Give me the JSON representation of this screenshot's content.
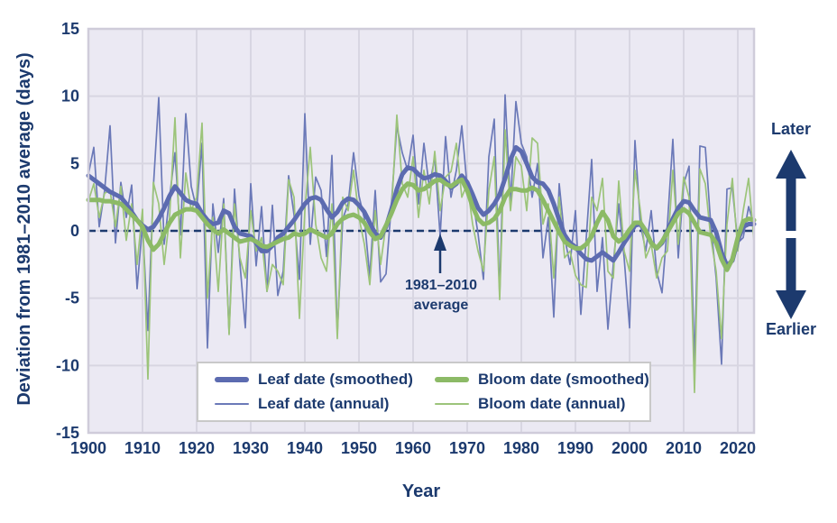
{
  "colors": {
    "navy": "#1c3a6e",
    "leaf_smoothed": "#5c6bb0",
    "leaf_annual": "#6b79b8",
    "bloom_smoothed": "#8cba66",
    "bloom_annual": "#9cc47a",
    "plot_background": "#ebe9f3",
    "gridline": "#d8d6e2",
    "plot_border": "#cfccda",
    "legend_border": "#c9c9c9"
  },
  "annotation": {
    "line1": "1981–2010",
    "line2": "average",
    "points_to_year": 1965
  },
  "direction_labels": {
    "up": "Later",
    "down": "Earlier"
  },
  "legend": {
    "items": [
      {
        "label": "Leaf date (smoothed)",
        "color": "#5c6bb0",
        "weight": "thick"
      },
      {
        "label": "Bloom date (smoothed)",
        "color": "#8cba66",
        "weight": "thick"
      },
      {
        "label": "Leaf date (annual)",
        "color": "#6b79b8",
        "weight": "thin"
      },
      {
        "label": "Bloom date (annual)",
        "color": "#9cc47a",
        "weight": "thin"
      }
    ]
  },
  "chart_data": {
    "type": "line",
    "title": "",
    "xlabel": "Year",
    "ylabel": "Deviation from 1981–2010 average (days)",
    "x_start": 1900,
    "x_end": 2023,
    "ylim": [
      -15,
      15
    ],
    "grid": true,
    "legend_position": "bottom-center-inside",
    "x_ticks": [
      1900,
      1910,
      1920,
      1930,
      1940,
      1950,
      1960,
      1970,
      1980,
      1990,
      2000,
      2010,
      2020
    ],
    "y_ticks": [
      15,
      10,
      5,
      0,
      -5,
      -10,
      -15
    ],
    "zero_line": {
      "value": 0,
      "style": "dashed",
      "color": "#1c3a6e"
    },
    "series": [
      {
        "name": "Leaf date (annual)",
        "style": "annual",
        "color": "#6b79b8",
        "width": 1.7,
        "values": [
          4.2,
          6.2,
          0.3,
          3,
          7.8,
          -0.9,
          3.6,
          1,
          3.4,
          -4.3,
          0.5,
          -7.4,
          3.2,
          9.9,
          -1,
          2.5,
          5.8,
          -0.3,
          8.7,
          3.3,
          1.6,
          6.5,
          -8.7,
          2,
          -1.6,
          2.4,
          -7.6,
          3.1,
          -2.4,
          -7.2,
          3.5,
          -2.6,
          1.8,
          -4.5,
          1.9,
          -4.8,
          -3,
          4.1,
          1.2,
          -3.6,
          8.7,
          -1,
          4,
          3,
          -1.9,
          5.6,
          -7.6,
          0.9,
          2,
          5.8,
          2.6,
          0.9,
          -3.4,
          3,
          -3.8,
          -3.2,
          2,
          7.8,
          5.8,
          4.5,
          7.1,
          2,
          6.5,
          3.2,
          5.5,
          -0.4,
          7,
          2.5,
          4.5,
          7.8,
          3.2,
          2.4,
          -0.2,
          -3.6,
          5.5,
          8.3,
          -4.8,
          10.1,
          2,
          9.6,
          6.5,
          5.5,
          2.5,
          5,
          -2,
          1,
          -6.4,
          3.5,
          -0.5,
          -2.5,
          1.5,
          -6.2,
          -0.5,
          5.3,
          -4.5,
          -0.5,
          -7.3,
          -2.5,
          2,
          -2,
          -7.2,
          6.7,
          0.5,
          -1.5,
          1.5,
          -3,
          -4.6,
          0.5,
          6.8,
          -2,
          3.5,
          4.8,
          -10,
          6.3,
          6.2,
          0.5,
          -3.5,
          -9.9,
          3.1,
          3.2,
          -0.9,
          -0.5,
          1.8,
          0.4
        ]
      },
      {
        "name": "Bloom date (annual)",
        "style": "annual",
        "color": "#9cc47a",
        "width": 1.7,
        "values": [
          2.2,
          3.5,
          1,
          2.8,
          3,
          0.3,
          3.3,
          -0.7,
          2,
          -2.5,
          1.6,
          -11,
          3.6,
          2,
          -2.5,
          1,
          8.4,
          -2,
          4.3,
          1.5,
          2.5,
          8,
          -5,
          1,
          -4.5,
          2,
          -7.7,
          2,
          -2,
          -3.5,
          1.5,
          -1.5,
          -0.5,
          -4.5,
          -2.5,
          -3,
          -4,
          3.8,
          2.5,
          -6.5,
          1.5,
          6.2,
          0.5,
          -2,
          -3,
          2,
          -8,
          2.5,
          1.5,
          4.5,
          1,
          -1,
          -4,
          1.5,
          -2.5,
          0.5,
          1.5,
          8.6,
          3.5,
          2.5,
          5.5,
          1,
          4.5,
          2,
          5.9,
          1.5,
          4,
          4.4,
          6.5,
          2.5,
          3.5,
          0.5,
          -1.5,
          -3,
          3,
          5.5,
          -5.1,
          7.5,
          1.5,
          5.5,
          4.8,
          1.5,
          6.9,
          6.5,
          0.5,
          2,
          -3.5,
          2.5,
          -2,
          -1.5,
          -3.3,
          -4,
          -4.2,
          2.5,
          1.5,
          3.9,
          -3,
          -3.5,
          3.7,
          -1.5,
          -3,
          4.5,
          1.5,
          -2,
          -1,
          -3.5,
          -2,
          -1.5,
          4.5,
          -1,
          4,
          2.5,
          -12,
          4.6,
          3.5,
          -0.5,
          -3,
          -8,
          0.5,
          3.9,
          -1.5,
          1.5,
          3.9,
          -0.8
        ]
      },
      {
        "name": "Leaf date (smoothed)",
        "style": "smoothed",
        "color": "#5c6bb0",
        "width": 5,
        "values": [
          4.1,
          3.8,
          3.5,
          3.2,
          2.9,
          2.7,
          2.5,
          2,
          1.4,
          0.8,
          0.4,
          0.1,
          0.3,
          0.9,
          1.7,
          2.6,
          3.3,
          2.8,
          2.3,
          2.1,
          2,
          1.3,
          0.8,
          0.5,
          0.6,
          1.5,
          1.3,
          0.3,
          -0.2,
          -0.3,
          -0.4,
          -0.9,
          -1.5,
          -1.5,
          -1.1,
          -0.5,
          -0.2,
          0.3,
          0.8,
          1.4,
          2,
          2.4,
          2.5,
          2.3,
          1.6,
          1,
          1.4,
          2.1,
          2.4,
          2.3,
          1.9,
          1.4,
          0.6,
          -0.2,
          -0.5,
          0.3,
          1.6,
          3.1,
          4.2,
          4.7,
          4.6,
          4.2,
          3.9,
          4,
          4.2,
          4.1,
          3.7,
          3.2,
          3.5,
          4.1,
          3.6,
          2.7,
          1.7,
          1.2,
          1.5,
          2,
          2.7,
          3.9,
          5.3,
          6.2,
          5.9,
          5,
          4,
          3.6,
          3.5,
          3,
          2,
          0.8,
          -0.3,
          -0.9,
          -1.2,
          -1.7,
          -2.1,
          -2.2,
          -1.9,
          -1.6,
          -1.9,
          -2.2,
          -1.6,
          -0.9,
          -0.3,
          0.4,
          0.5,
          -0.1,
          -0.9,
          -1.3,
          -0.9,
          0,
          0.9,
          1.7,
          2.2,
          2.1,
          1.5,
          1,
          0.9,
          0.8,
          -0.1,
          -1.6,
          -2.6,
          -2.2,
          -0.7,
          0.3,
          0.5,
          0.5
        ]
      },
      {
        "name": "Bloom date (smoothed)",
        "style": "smoothed",
        "color": "#8cba66",
        "width": 5,
        "values": [
          2.3,
          2.3,
          2.3,
          2.2,
          2.2,
          2.1,
          2,
          1.6,
          1.2,
          0.8,
          0.3,
          -0.7,
          -1.4,
          -1,
          -0.2,
          0.6,
          1.2,
          1.4,
          1.6,
          1.6,
          1.5,
          1,
          0.5,
          0.1,
          -0.2,
          0.1,
          -0.2,
          -0.5,
          -0.8,
          -0.7,
          -0.6,
          -0.8,
          -1.1,
          -1.2,
          -1,
          -0.8,
          -0.6,
          -0.5,
          -0.2,
          -0.3,
          -0.2,
          0.1,
          -0.1,
          -0.3,
          -0.5,
          -0.2,
          0.5,
          0.9,
          1.1,
          1.2,
          1,
          0.6,
          -0.1,
          -0.6,
          -0.4,
          0.4,
          1.3,
          2.3,
          3.1,
          3.5,
          3.4,
          3,
          3.1,
          3.4,
          3.7,
          3.8,
          3.5,
          3.3,
          3.6,
          3.8,
          3,
          1.8,
          0.9,
          0.5,
          0.6,
          0.9,
          1.5,
          2.5,
          3.1,
          3.1,
          3,
          3,
          3.2,
          3,
          2.3,
          1.5,
          0.7,
          -0.1,
          -0.8,
          -1.1,
          -1.3,
          -1.3,
          -1,
          -0.4,
          0.6,
          1.4,
          0.8,
          -0.4,
          -0.8,
          -0.5,
          0.1,
          0.6,
          0.6,
          0,
          -0.9,
          -1.3,
          -0.8,
          -0.1,
          0.6,
          1.3,
          1.6,
          1.3,
          0.6,
          -0.1,
          -0.2,
          -0.3,
          -0.9,
          -2.1,
          -2.9,
          -2.1,
          -0.5,
          0.7,
          0.9,
          0.8
        ]
      }
    ]
  }
}
